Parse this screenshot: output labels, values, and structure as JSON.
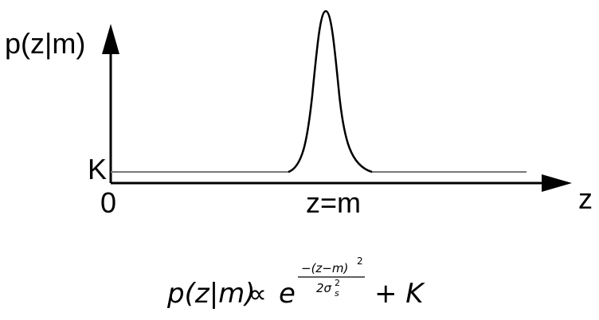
{
  "diagram": {
    "y_axis_label": "p(z|m)",
    "x_axis_label": "z",
    "baseline_label": "K",
    "origin_label": "0",
    "peak_label": "z=m"
  },
  "formula": {
    "lhs": "p(z|m)",
    "relation": "∝",
    "base": "e",
    "exponent_numerator": "−(z−m)",
    "exponent_numerator_power": "2",
    "exponent_denominator": "2σ",
    "exponent_denominator_power": "2",
    "exponent_denominator_subscript": "s",
    "plus_term": "+ K"
  }
}
